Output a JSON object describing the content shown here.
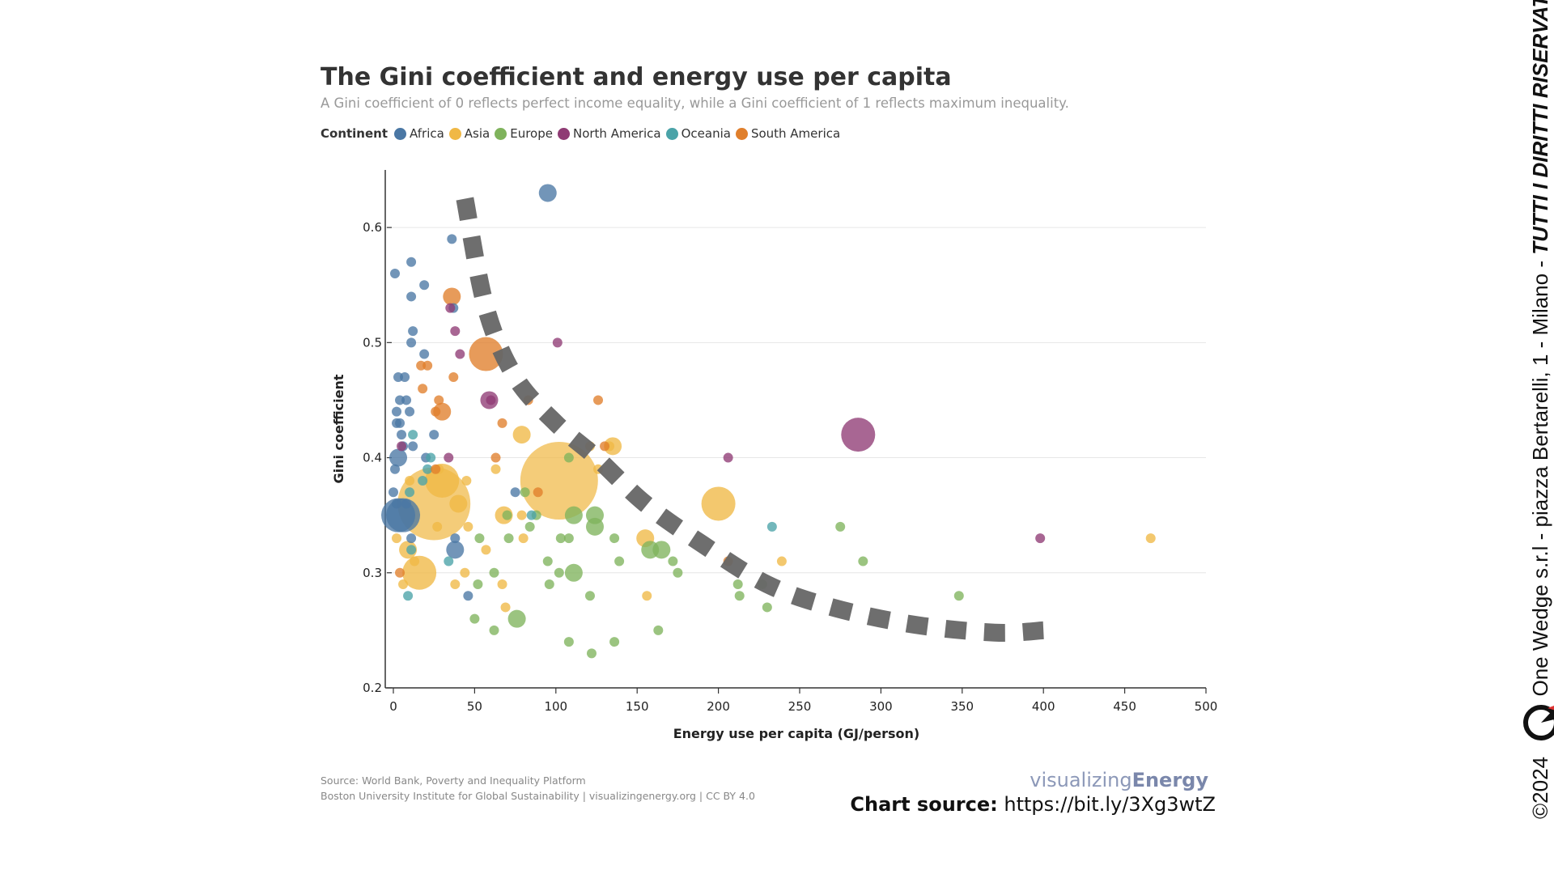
{
  "chart_data": {
    "type": "scatter",
    "title": "The Gini coefficient and energy use per capita",
    "subtitle": "A Gini coefficient of 0 reflects perfect income equality, while a Gini coefficient of 1 reflects maximum inequality.",
    "xlabel": "Energy use per capita (GJ/person)",
    "ylabel": "Gini coefficient",
    "xlim": [
      0,
      500
    ],
    "ylim": [
      0.2,
      0.65
    ],
    "xticks": [
      "0",
      "50",
      "100",
      "150",
      "200",
      "250",
      "300",
      "350",
      "400",
      "450",
      "500"
    ],
    "yticks": [
      "0.2",
      "0.3",
      "0.4",
      "0.5",
      "0.6"
    ],
    "grid": "horizontal",
    "legend": {
      "title": "Continent",
      "placement": "top-left",
      "items": [
        {
          "name": "Africa",
          "color": "#4a77a4"
        },
        {
          "name": "Asia",
          "color": "#f0b845"
        },
        {
          "name": "Europe",
          "color": "#7fb35c"
        },
        {
          "name": "North America",
          "color": "#8f3b74"
        },
        {
          "name": "Oceania",
          "color": "#4aa3a8"
        },
        {
          "name": "South America",
          "color": "#e07f2c"
        }
      ]
    },
    "series": [
      {
        "name": "Africa",
        "points": [
          [
            95,
            0.63,
            "m"
          ],
          [
            36,
            0.59,
            "s"
          ],
          [
            11,
            0.57,
            "s"
          ],
          [
            1,
            0.56,
            "s"
          ],
          [
            19,
            0.55,
            "s"
          ],
          [
            11,
            0.54,
            "s"
          ],
          [
            37,
            0.53,
            "s"
          ],
          [
            12,
            0.51,
            "s"
          ],
          [
            11,
            0.5,
            "s"
          ],
          [
            19,
            0.49,
            "s"
          ],
          [
            3,
            0.47,
            "s"
          ],
          [
            7,
            0.47,
            "s"
          ],
          [
            4,
            0.45,
            "s"
          ],
          [
            8,
            0.45,
            "s"
          ],
          [
            10,
            0.44,
            "s"
          ],
          [
            2,
            0.44,
            "s"
          ],
          [
            2,
            0.43,
            "s"
          ],
          [
            4,
            0.43,
            "s"
          ],
          [
            5,
            0.42,
            "s"
          ],
          [
            25,
            0.42,
            "s"
          ],
          [
            6,
            0.41,
            "s"
          ],
          [
            12,
            0.41,
            "s"
          ],
          [
            3,
            0.4,
            "m"
          ],
          [
            20,
            0.4,
            "s"
          ],
          [
            1,
            0.39,
            "s"
          ],
          [
            0,
            0.37,
            "s"
          ],
          [
            75,
            0.37,
            "s"
          ],
          [
            2,
            0.36,
            "s"
          ],
          [
            8,
            0.36,
            "s"
          ],
          [
            3,
            0.35,
            "l"
          ],
          [
            6,
            0.35,
            "l"
          ],
          [
            11,
            0.33,
            "s"
          ],
          [
            38,
            0.33,
            "s"
          ],
          [
            38,
            0.32,
            "m"
          ],
          [
            46,
            0.28,
            "s"
          ]
        ]
      },
      {
        "name": "Asia",
        "points": [
          [
            25,
            0.36,
            "xl"
          ],
          [
            102,
            0.38,
            "xxl"
          ],
          [
            30,
            0.38,
            "l"
          ],
          [
            16,
            0.3,
            "l"
          ],
          [
            9,
            0.32,
            "m"
          ],
          [
            40,
            0.36,
            "m"
          ],
          [
            200,
            0.36,
            "l"
          ],
          [
            155,
            0.33,
            "m"
          ],
          [
            79,
            0.42,
            "m"
          ],
          [
            135,
            0.41,
            "m"
          ],
          [
            68,
            0.35,
            "m"
          ],
          [
            13,
            0.31,
            "s"
          ],
          [
            2,
            0.33,
            "s"
          ],
          [
            44,
            0.3,
            "s"
          ],
          [
            45,
            0.38,
            "s"
          ],
          [
            46,
            0.34,
            "s"
          ],
          [
            57,
            0.32,
            "s"
          ],
          [
            67,
            0.29,
            "s"
          ],
          [
            69,
            0.27,
            "s"
          ],
          [
            80,
            0.33,
            "s"
          ],
          [
            79,
            0.35,
            "s"
          ],
          [
            63,
            0.39,
            "s"
          ],
          [
            38,
            0.29,
            "s"
          ],
          [
            6,
            0.29,
            "s"
          ],
          [
            10,
            0.38,
            "s"
          ],
          [
            27,
            0.34,
            "s"
          ],
          [
            28,
            0.39,
            "s"
          ],
          [
            156,
            0.28,
            "s"
          ],
          [
            239,
            0.31,
            "s"
          ],
          [
            466,
            0.33,
            "s"
          ],
          [
            121,
            0.41,
            "s"
          ],
          [
            133,
            0.41,
            "s"
          ],
          [
            126,
            0.39,
            "s"
          ]
        ]
      },
      {
        "name": "Europe",
        "points": [
          [
            165,
            0.32,
            "m"
          ],
          [
            158,
            0.32,
            "m"
          ],
          [
            124,
            0.35,
            "m"
          ],
          [
            111,
            0.35,
            "m"
          ],
          [
            111,
            0.3,
            "m"
          ],
          [
            76,
            0.26,
            "m"
          ],
          [
            124,
            0.34,
            "m"
          ],
          [
            70,
            0.35,
            "s"
          ],
          [
            88,
            0.35,
            "s"
          ],
          [
            81,
            0.37,
            "s"
          ],
          [
            84,
            0.34,
            "s"
          ],
          [
            71,
            0.33,
            "s"
          ],
          [
            53,
            0.33,
            "s"
          ],
          [
            52,
            0.29,
            "s"
          ],
          [
            62,
            0.3,
            "s"
          ],
          [
            50,
            0.26,
            "s"
          ],
          [
            62,
            0.25,
            "s"
          ],
          [
            95,
            0.31,
            "s"
          ],
          [
            96,
            0.29,
            "s"
          ],
          [
            102,
            0.3,
            "s"
          ],
          [
            103,
            0.33,
            "s"
          ],
          [
            108,
            0.33,
            "s"
          ],
          [
            108,
            0.4,
            "s"
          ],
          [
            108,
            0.24,
            "s"
          ],
          [
            121,
            0.28,
            "s"
          ],
          [
            122,
            0.23,
            "s"
          ],
          [
            136,
            0.33,
            "s"
          ],
          [
            136,
            0.24,
            "s"
          ],
          [
            139,
            0.31,
            "s"
          ],
          [
            163,
            0.25,
            "s"
          ],
          [
            172,
            0.31,
            "s"
          ],
          [
            175,
            0.3,
            "s"
          ],
          [
            212,
            0.29,
            "s"
          ],
          [
            213,
            0.28,
            "s"
          ],
          [
            230,
            0.27,
            "s"
          ],
          [
            227,
            0.29,
            "s"
          ],
          [
            275,
            0.34,
            "s"
          ],
          [
            289,
            0.31,
            "s"
          ],
          [
            348,
            0.28,
            "s"
          ]
        ]
      },
      {
        "name": "North America",
        "points": [
          [
            286,
            0.42,
            "l"
          ],
          [
            59,
            0.45,
            "m"
          ],
          [
            101,
            0.5,
            "s"
          ],
          [
            38,
            0.51,
            "s"
          ],
          [
            41,
            0.49,
            "s"
          ],
          [
            35,
            0.53,
            "s"
          ],
          [
            60,
            0.45,
            "s"
          ],
          [
            34,
            0.4,
            "s"
          ],
          [
            206,
            0.4,
            "s"
          ],
          [
            398,
            0.33,
            "s"
          ],
          [
            5,
            0.41,
            "s"
          ]
        ]
      },
      {
        "name": "Oceania",
        "points": [
          [
            12,
            0.42,
            "s"
          ],
          [
            18,
            0.38,
            "s"
          ],
          [
            21,
            0.39,
            "s"
          ],
          [
            23,
            0.4,
            "s"
          ],
          [
            11,
            0.32,
            "s"
          ],
          [
            34,
            0.31,
            "s"
          ],
          [
            9,
            0.28,
            "s"
          ],
          [
            85,
            0.35,
            "s"
          ],
          [
            233,
            0.34,
            "s"
          ],
          [
            10,
            0.37,
            "s"
          ]
        ]
      },
      {
        "name": "South America",
        "points": [
          [
            57,
            0.49,
            "l"
          ],
          [
            36,
            0.54,
            "m"
          ],
          [
            30,
            0.44,
            "m"
          ],
          [
            18,
            0.46,
            "s"
          ],
          [
            17,
            0.48,
            "s"
          ],
          [
            21,
            0.48,
            "s"
          ],
          [
            28,
            0.45,
            "s"
          ],
          [
            26,
            0.44,
            "s"
          ],
          [
            37,
            0.47,
            "s"
          ],
          [
            126,
            0.45,
            "s"
          ],
          [
            83,
            0.45,
            "s"
          ],
          [
            67,
            0.43,
            "s"
          ],
          [
            63,
            0.4,
            "s"
          ],
          [
            89,
            0.37,
            "s"
          ],
          [
            26,
            0.39,
            "s"
          ],
          [
            4,
            0.3,
            "s"
          ],
          [
            206,
            0.31,
            "s"
          ],
          [
            130,
            0.41,
            "s"
          ]
        ]
      }
    ],
    "annotation": {
      "type": "dashed-curve",
      "color": "#666666",
      "points": [
        [
          44,
          0.625
        ],
        [
          57,
          0.53
        ],
        [
          75,
          0.47
        ],
        [
          100,
          0.43
        ],
        [
          125,
          0.4
        ],
        [
          155,
          0.36
        ],
        [
          190,
          0.325
        ],
        [
          230,
          0.29
        ],
        [
          270,
          0.27
        ],
        [
          320,
          0.255
        ],
        [
          370,
          0.248
        ],
        [
          400,
          0.25
        ]
      ]
    }
  },
  "footer": {
    "source_line1": "Source: World Bank, Poverty and Inequality Platform",
    "source_line2": "Boston University Institute for Global Sustainability | visualizingenergy.org | CC BY 4.0",
    "brand_light": "visualizing",
    "brand_bold": "Energy",
    "chart_source_label": "Chart source:",
    "chart_source_url": "https://bit.ly/3Xg3wtZ"
  },
  "sidebar": {
    "copyright": "©2024",
    "company": "One Wedge s.r.l - piazza Bertarelli, 1 - Milano -",
    "rights": "TUTTI I DIRITTI RISERVATI"
  }
}
